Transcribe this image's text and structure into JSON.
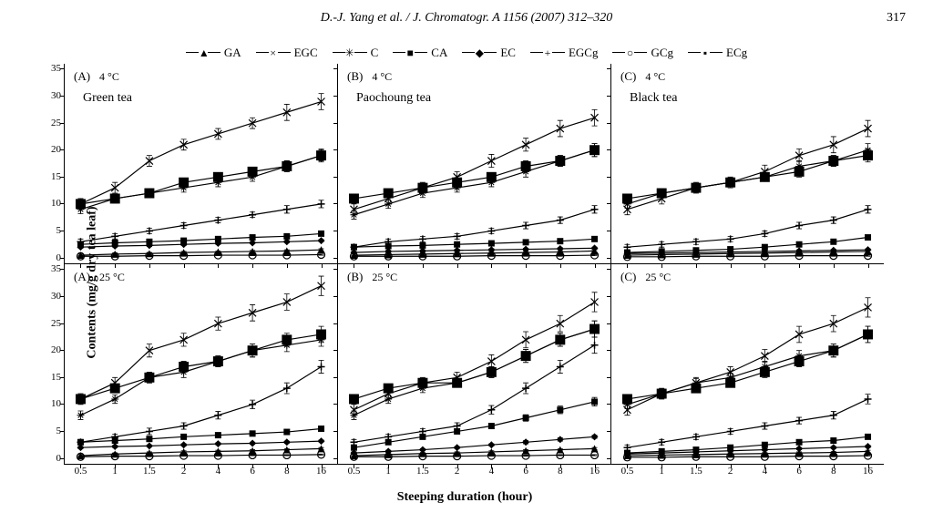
{
  "header": {
    "citation": "D.-J. Yang et al. / J. Chromatogr. A 1156 (2007) 312–320",
    "page_number": "317"
  },
  "legend": {
    "items": [
      {
        "key": "GA",
        "label": "GA",
        "marker": "▲"
      },
      {
        "key": "EGC",
        "label": "EGC",
        "marker": "×"
      },
      {
        "key": "C",
        "label": "C",
        "marker": "✳"
      },
      {
        "key": "CA",
        "label": "CA",
        "marker": "■"
      },
      {
        "key": "EC",
        "label": "EC",
        "marker": "◆"
      },
      {
        "key": "EGCg",
        "label": "EGCg",
        "marker": "+"
      },
      {
        "key": "GCg",
        "label": "GCg",
        "marker": "○"
      },
      {
        "key": "ECg",
        "label": "ECg",
        "marker": "▪"
      }
    ]
  },
  "axes": {
    "ylabel": "Contents (mg/g dry tea leaf)",
    "xlabel": "Steeping duration (hour)",
    "x_categories": [
      "0.5",
      "1",
      "1.5",
      "2",
      "4",
      "6",
      "8",
      "16"
    ],
    "ylim": [
      0,
      35
    ],
    "yticks": [
      0,
      5,
      10,
      15,
      20,
      25,
      30,
      35
    ],
    "tick_fontsize": 11,
    "label_fontsize": 14
  },
  "style": {
    "line_color": "#000000",
    "background": "#ffffff",
    "line_width": 1.2,
    "marker_size": 4,
    "errorbar_halfwidth": 3,
    "font_family": "serif"
  },
  "panels": [
    {
      "row": 0,
      "col": 0,
      "letter": "(A)",
      "temp": "4 °C",
      "tea": "Green tea",
      "series": {
        "EGC": [
          10,
          13,
          18,
          21,
          23,
          25,
          27,
          29
        ],
        "CA": [
          10,
          11,
          12,
          14,
          15,
          16,
          17,
          19
        ],
        "C": [
          9,
          11,
          12,
          13,
          14,
          15,
          17,
          19
        ],
        "EGCg": [
          3,
          4,
          5,
          6,
          7,
          8,
          9,
          10
        ],
        "ECg": [
          2.5,
          2.8,
          3,
          3.2,
          3.5,
          3.8,
          4,
          4.5
        ],
        "EC": [
          2,
          2.2,
          2.3,
          2.5,
          2.7,
          2.8,
          3,
          3.2
        ],
        "GA": [
          0.5,
          0.7,
          0.8,
          1,
          1.1,
          1.2,
          1.3,
          1.5
        ],
        "GCg": [
          0.3,
          0.3,
          0.4,
          0.4,
          0.5,
          0.5,
          0.5,
          0.6
        ]
      },
      "errors": {
        "EGC": [
          1,
          1,
          1,
          1,
          1,
          1,
          1.5,
          1.5
        ],
        "CA": [
          0.8,
          0.8,
          0.8,
          0.8,
          0.8,
          0.8,
          1,
          1.2
        ],
        "C": [
          0.8,
          0.8,
          0.8,
          0.8,
          0.8,
          0.8,
          1,
          1
        ],
        "EGCg": [
          0.5,
          0.5,
          0.5,
          0.5,
          0.5,
          0.5,
          0.7,
          0.7
        ],
        "ECg": [
          0.3,
          0.3,
          0.3,
          0.3,
          0.3,
          0.3,
          0.3,
          0.3
        ],
        "EC": [
          0.2,
          0.2,
          0.2,
          0.2,
          0.2,
          0.2,
          0.2,
          0.2
        ],
        "GA": [
          0.2,
          0.2,
          0.2,
          0.2,
          0.2,
          0.2,
          0.2,
          0.2
        ],
        "GCg": [
          0.1,
          0.1,
          0.1,
          0.1,
          0.1,
          0.1,
          0.1,
          0.1
        ]
      }
    },
    {
      "row": 0,
      "col": 1,
      "letter": "(B)",
      "temp": "4 °C",
      "tea": "Paochoung tea",
      "series": {
        "EGC": [
          9,
          11,
          13,
          15,
          18,
          21,
          24,
          26
        ],
        "CA": [
          11,
          12,
          13,
          14,
          15,
          17,
          18,
          20
        ],
        "C": [
          8,
          10,
          12,
          13,
          14,
          16,
          18,
          20
        ],
        "EGCg": [
          2,
          3,
          3.5,
          4,
          5,
          6,
          7,
          9
        ],
        "ECg": [
          2,
          2.2,
          2.3,
          2.5,
          2.7,
          2.9,
          3.1,
          3.5
        ],
        "EC": [
          1,
          1.2,
          1.3,
          1.4,
          1.5,
          1.6,
          1.7,
          1.8
        ],
        "GA": [
          0.5,
          0.6,
          0.7,
          0.8,
          0.9,
          1,
          1.1,
          1.3
        ],
        "GCg": [
          0.3,
          0.3,
          0.3,
          0.3,
          0.4,
          0.4,
          0.4,
          0.5
        ]
      },
      "errors": {
        "EGC": [
          1,
          1,
          1,
          1,
          1.2,
          1.2,
          1.5,
          1.5
        ],
        "CA": [
          0.8,
          0.8,
          0.8,
          0.8,
          0.8,
          1,
          1,
          1.2
        ],
        "C": [
          0.8,
          0.8,
          0.8,
          0.8,
          0.8,
          1,
          1,
          1.2
        ],
        "EGCg": [
          0.5,
          0.5,
          0.5,
          0.5,
          0.5,
          0.6,
          0.6,
          0.7
        ],
        "ECg": [
          0.3,
          0.3,
          0.3,
          0.3,
          0.3,
          0.3,
          0.3,
          0.3
        ],
        "EC": [
          0.2,
          0.2,
          0.2,
          0.2,
          0.2,
          0.2,
          0.2,
          0.2
        ],
        "GA": [
          0.2,
          0.2,
          0.2,
          0.2,
          0.2,
          0.2,
          0.2,
          0.2
        ],
        "GCg": [
          0.1,
          0.1,
          0.1,
          0.1,
          0.1,
          0.1,
          0.1,
          0.1
        ]
      }
    },
    {
      "row": 0,
      "col": 2,
      "letter": "(C)",
      "temp": "4 °C",
      "tea": "Black tea",
      "series": {
        "EGC": [
          9,
          11,
          13,
          14,
          16,
          19,
          21,
          24
        ],
        "CA": [
          11,
          12,
          13,
          14,
          15,
          16,
          18,
          19
        ],
        "C": [
          10,
          12,
          13,
          14,
          15,
          17,
          18,
          20
        ],
        "EGCg": [
          2,
          2.5,
          3,
          3.5,
          4.5,
          6,
          7,
          9
        ],
        "ECg": [
          1,
          1.2,
          1.4,
          1.6,
          2,
          2.5,
          3,
          3.8
        ],
        "EC": [
          0.8,
          0.9,
          1,
          1.1,
          1.2,
          1.3,
          1.4,
          1.5
        ],
        "GA": [
          0.5,
          0.6,
          0.7,
          0.8,
          0.9,
          1,
          1.1,
          1.2
        ],
        "GCg": [
          0.2,
          0.2,
          0.3,
          0.3,
          0.3,
          0.4,
          0.4,
          0.4
        ]
      },
      "errors": {
        "EGC": [
          1,
          1,
          1,
          1,
          1.2,
          1.2,
          1.5,
          1.5
        ],
        "CA": [
          0.8,
          0.8,
          0.8,
          0.8,
          0.8,
          1,
          1,
          1.2
        ],
        "C": [
          0.8,
          0.8,
          0.8,
          0.8,
          0.8,
          1,
          1,
          1.2
        ],
        "EGCg": [
          0.5,
          0.5,
          0.5,
          0.5,
          0.5,
          0.6,
          0.6,
          0.7
        ],
        "ECg": [
          0.3,
          0.3,
          0.3,
          0.3,
          0.3,
          0.3,
          0.3,
          0.3
        ],
        "EC": [
          0.2,
          0.2,
          0.2,
          0.2,
          0.2,
          0.2,
          0.2,
          0.2
        ],
        "GA": [
          0.2,
          0.2,
          0.2,
          0.2,
          0.2,
          0.2,
          0.2,
          0.2
        ],
        "GCg": [
          0.1,
          0.1,
          0.1,
          0.1,
          0.1,
          0.1,
          0.1,
          0.1
        ]
      }
    },
    {
      "row": 1,
      "col": 0,
      "letter": "(A)",
      "temp": "25 °C",
      "tea": "",
      "series": {
        "EGC": [
          11,
          14,
          20,
          22,
          25,
          27,
          29,
          32
        ],
        "CA": [
          11,
          13,
          15,
          17,
          18,
          20,
          22,
          23
        ],
        "C": [
          8,
          11,
          15,
          16,
          18,
          20,
          21,
          22
        ],
        "EGCg": [
          3,
          4,
          5,
          6,
          8,
          10,
          13,
          17
        ],
        "ECg": [
          3,
          3.3,
          3.6,
          4,
          4.3,
          4.6,
          4.9,
          5.5
        ],
        "EC": [
          2,
          2.2,
          2.3,
          2.5,
          2.7,
          2.8,
          3,
          3.2
        ],
        "GA": [
          0.5,
          0.8,
          1,
          1.2,
          1.3,
          1.4,
          1.6,
          1.8
        ],
        "GCg": [
          0.3,
          0.4,
          0.4,
          0.5,
          0.5,
          0.6,
          0.6,
          0.7
        ]
      },
      "errors": {
        "EGC": [
          1,
          1,
          1.2,
          1.2,
          1.2,
          1.5,
          1.5,
          1.8
        ],
        "CA": [
          0.8,
          0.8,
          1,
          1,
          1,
          1.2,
          1.2,
          1.5
        ],
        "C": [
          0.8,
          0.8,
          1,
          1,
          1,
          1.2,
          1.2,
          1.2
        ],
        "EGCg": [
          0.5,
          0.5,
          0.6,
          0.6,
          0.7,
          0.8,
          1,
          1.2
        ],
        "ECg": [
          0.3,
          0.3,
          0.3,
          0.3,
          0.3,
          0.3,
          0.3,
          0.3
        ],
        "EC": [
          0.2,
          0.2,
          0.2,
          0.2,
          0.2,
          0.2,
          0.2,
          0.2
        ],
        "GA": [
          0.2,
          0.2,
          0.2,
          0.2,
          0.2,
          0.2,
          0.2,
          0.2
        ],
        "GCg": [
          0.1,
          0.1,
          0.1,
          0.1,
          0.1,
          0.1,
          0.1,
          0.1
        ]
      }
    },
    {
      "row": 1,
      "col": 1,
      "letter": "(B)",
      "temp": "25 °C",
      "tea": "",
      "series": {
        "EGC": [
          9,
          12,
          14,
          15,
          18,
          22,
          25,
          29
        ],
        "CA": [
          11,
          13,
          14,
          14,
          16,
          19,
          22,
          24
        ],
        "C": [
          8,
          11,
          13,
          14,
          16,
          19,
          22,
          24
        ],
        "EGCg": [
          3,
          4,
          5,
          6,
          9,
          13,
          17,
          21
        ],
        "ECg": [
          2,
          3,
          4,
          5,
          6,
          7.5,
          9,
          10.5
        ],
        "EC": [
          1,
          1.3,
          1.6,
          2,
          2.5,
          3,
          3.5,
          4
        ],
        "GA": [
          0.5,
          0.7,
          0.9,
          1,
          1.2,
          1.4,
          1.6,
          1.8
        ],
        "GCg": [
          0.3,
          0.3,
          0.4,
          0.4,
          0.5,
          0.5,
          0.6,
          0.6
        ]
      },
      "errors": {
        "EGC": [
          1,
          1,
          1,
          1,
          1.2,
          1.5,
          1.5,
          1.8
        ],
        "CA": [
          0.8,
          0.8,
          0.8,
          0.8,
          1,
          1.2,
          1.2,
          1.5
        ],
        "C": [
          0.8,
          0.8,
          0.8,
          0.8,
          1,
          1.2,
          1.2,
          1.5
        ],
        "EGCg": [
          0.5,
          0.5,
          0.5,
          0.6,
          0.8,
          1,
          1.2,
          1.5
        ],
        "ECg": [
          0.3,
          0.3,
          0.3,
          0.4,
          0.5,
          0.6,
          0.7,
          0.8
        ],
        "EC": [
          0.2,
          0.2,
          0.2,
          0.2,
          0.2,
          0.3,
          0.3,
          0.3
        ],
        "GA": [
          0.2,
          0.2,
          0.2,
          0.2,
          0.2,
          0.2,
          0.2,
          0.2
        ],
        "GCg": [
          0.1,
          0.1,
          0.1,
          0.1,
          0.1,
          0.1,
          0.1,
          0.1
        ]
      }
    },
    {
      "row": 1,
      "col": 2,
      "letter": "(C)",
      "temp": "25 °C",
      "tea": "",
      "series": {
        "EGC": [
          9,
          12,
          14,
          16,
          19,
          23,
          25,
          28
        ],
        "CA": [
          11,
          12,
          13,
          14,
          16,
          18,
          20,
          23
        ],
        "C": [
          10,
          12,
          14,
          15,
          17,
          19,
          20,
          23
        ],
        "EGCg": [
          2,
          3,
          4,
          5,
          6,
          7,
          8,
          11
        ],
        "ECg": [
          1,
          1.3,
          1.6,
          2,
          2.5,
          3,
          3.3,
          4
        ],
        "EC": [
          0.8,
          1,
          1.2,
          1.4,
          1.6,
          1.8,
          2,
          2.2
        ],
        "GA": [
          0.5,
          0.6,
          0.7,
          0.8,
          0.9,
          1,
          1.1,
          1.3
        ],
        "GCg": [
          0.2,
          0.2,
          0.3,
          0.3,
          0.3,
          0.4,
          0.4,
          0.5
        ]
      },
      "errors": {
        "EGC": [
          1,
          1,
          1,
          1,
          1.2,
          1.5,
          1.5,
          1.8
        ],
        "CA": [
          0.8,
          0.8,
          0.8,
          0.8,
          1,
          1,
          1.2,
          1.5
        ],
        "C": [
          0.8,
          0.8,
          0.8,
          0.8,
          1,
          1,
          1.2,
          1.5
        ],
        "EGCg": [
          0.5,
          0.5,
          0.5,
          0.5,
          0.6,
          0.6,
          0.7,
          0.9
        ],
        "ECg": [
          0.3,
          0.3,
          0.3,
          0.3,
          0.3,
          0.3,
          0.3,
          0.3
        ],
        "EC": [
          0.2,
          0.2,
          0.2,
          0.2,
          0.2,
          0.2,
          0.2,
          0.2
        ],
        "GA": [
          0.2,
          0.2,
          0.2,
          0.2,
          0.2,
          0.2,
          0.2,
          0.2
        ],
        "GCg": [
          0.1,
          0.1,
          0.1,
          0.1,
          0.1,
          0.1,
          0.1,
          0.1
        ]
      }
    }
  ],
  "markers": {
    "GA": {
      "type": "triangle",
      "fill": true
    },
    "EGC": {
      "type": "x",
      "fill": false
    },
    "C": {
      "type": "asterisk",
      "fill": false
    },
    "CA": {
      "type": "square",
      "fill": true,
      "big": true
    },
    "EC": {
      "type": "diamond",
      "fill": true
    },
    "EGCg": {
      "type": "plus",
      "fill": false
    },
    "GCg": {
      "type": "circle",
      "fill": false
    },
    "ECg": {
      "type": "square",
      "fill": true,
      "small": true
    }
  }
}
